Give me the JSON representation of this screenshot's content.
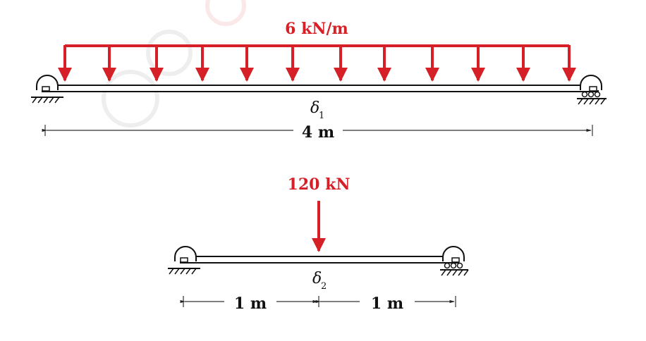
{
  "beam1": {
    "load_label": "6 kN/m",
    "deflection_symbol": "δ",
    "deflection_subscript": "1",
    "span_label": "4 m"
  },
  "beam2": {
    "load_label": "120 kN",
    "deflection_symbol": "δ",
    "deflection_subscript": "2",
    "span_left_label": "1 m",
    "span_right_label": "1 m"
  },
  "colors": {
    "load": "#d62027",
    "beam": "#111111",
    "watermark": "#d9d9d9"
  },
  "icons": [
    "pin-support-icon",
    "roller-support-icon",
    "watermark-gear-icon"
  ]
}
